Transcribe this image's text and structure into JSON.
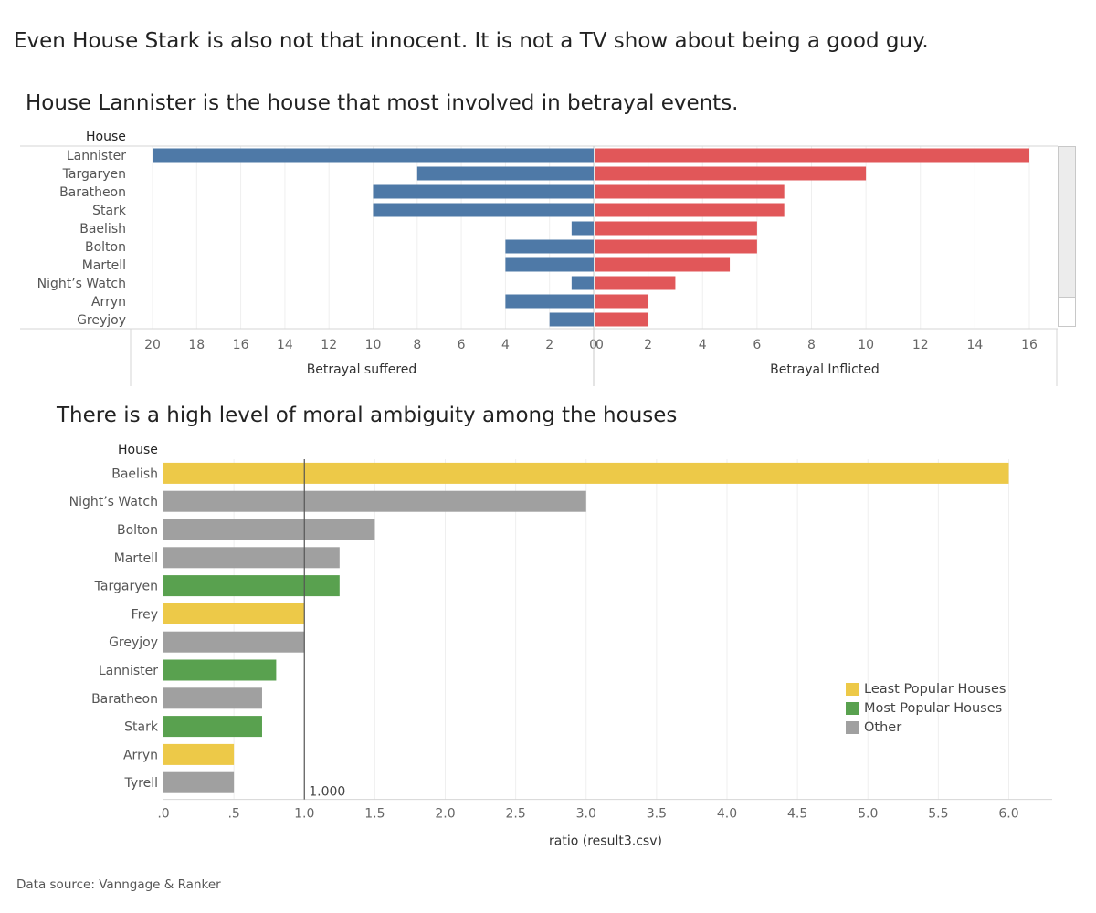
{
  "dashboard": {
    "title": "Even House Stark is also not that innocent. It is not a TV show about being a good guy.",
    "footer": "Data source: Vanngage & Ranker"
  },
  "colors": {
    "suffered": "#4e79a7",
    "inflicted": "#e15759",
    "least_popular": "#edc948",
    "most_popular": "#59a14f",
    "other": "#a0a0a0"
  },
  "chart_data": [
    {
      "type": "bar",
      "orientation": "horizontal-butterfly",
      "title": "House Lannister is the house that most involved in  betrayal events.",
      "row_header": "House",
      "categories": [
        "Lannister",
        "Targaryen",
        "Baratheon",
        "Stark",
        "Baelish",
        "Bolton",
        "Martell",
        "Night’s Watch",
        "Arryn",
        "Greyjoy"
      ],
      "series": [
        {
          "name": "Betrayal suffered",
          "values": [
            20,
            8,
            10,
            10,
            1,
            4,
            4,
            1,
            4,
            2
          ]
        },
        {
          "name": "Betrayal Inflicted",
          "values": [
            16,
            10,
            7,
            7,
            6,
            6,
            5,
            3,
            2,
            2
          ]
        }
      ],
      "xlabel_left": "Betrayal suffered",
      "xlabel_right": "Betrayal Inflicted",
      "left_ticks": [
        "20",
        "18",
        "16",
        "14",
        "12",
        "10",
        "8",
        "6",
        "4",
        "2",
        "0"
      ],
      "right_ticks": [
        "0",
        "2",
        "4",
        "6",
        "8",
        "10",
        "12",
        "14",
        "16"
      ],
      "xlim_left": [
        0,
        20
      ],
      "xlim_right": [
        0,
        16
      ],
      "grid": true
    },
    {
      "type": "bar",
      "orientation": "horizontal",
      "title": "There is a high level of moral ambiguity among the houses",
      "row_header": "House",
      "categories": [
        "Baelish",
        "Night’s Watch",
        "Bolton",
        "Martell",
        "Targaryen",
        "Frey",
        "Greyjoy",
        "Lannister",
        "Baratheon",
        "Stark",
        "Arryn",
        "Tyrell"
      ],
      "values": [
        6.0,
        3.0,
        1.5,
        1.25,
        1.25,
        1.0,
        1.0,
        0.8,
        0.7,
        0.7,
        0.5,
        0.5
      ],
      "groups": [
        "Least Popular Houses",
        "Other",
        "Other",
        "Other",
        "Most Popular Houses",
        "Least Popular Houses",
        "Other",
        "Most Popular Houses",
        "Other",
        "Most Popular Houses",
        "Least Popular Houses",
        "Other"
      ],
      "xlabel": "ratio (result3.csv)",
      "xticks": [
        ".0",
        ".5",
        "1.0",
        "1.5",
        "2.0",
        "2.5",
        "3.0",
        "3.5",
        "4.0",
        "4.5",
        "5.0",
        "5.5",
        "6.0"
      ],
      "xlim": [
        0,
        6.2
      ],
      "reference_line": {
        "value": 1.0,
        "label": "1.000"
      },
      "legend": {
        "position": "right",
        "items": [
          {
            "label": "Least Popular Houses",
            "color": "#edc948"
          },
          {
            "label": "Most Popular Houses",
            "color": "#59a14f"
          },
          {
            "label": "Other",
            "color": "#a0a0a0"
          }
        ]
      },
      "grid": true
    }
  ]
}
